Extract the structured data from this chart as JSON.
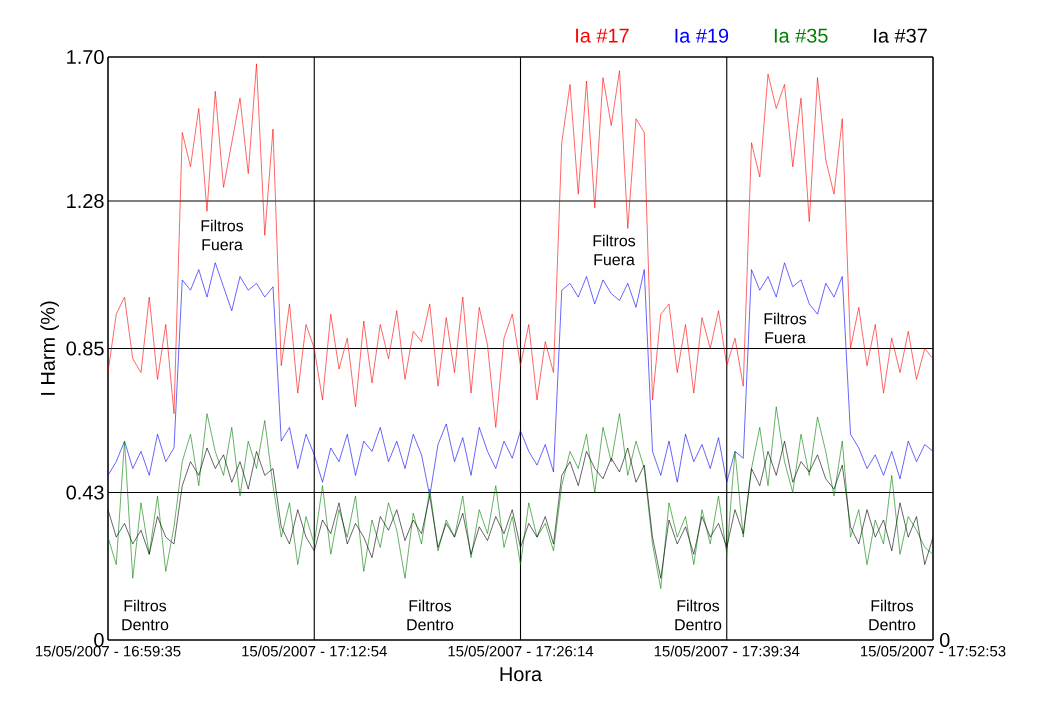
{
  "chart_data": {
    "type": "line",
    "xlabel": "Hora",
    "ylabel": "I Harm (%)",
    "legend": "top",
    "grid": true,
    "categories": [
      "15/05/2007 - 16:59:35",
      null,
      null,
      null,
      null,
      null,
      null,
      null,
      null,
      null,
      null,
      null,
      null,
      null,
      null,
      null,
      null,
      null,
      null,
      null,
      null,
      null,
      null,
      null,
      null,
      "15/05/2007 - 17:12:54",
      null,
      null,
      null,
      null,
      null,
      null,
      null,
      null,
      null,
      null,
      null,
      null,
      null,
      null,
      null,
      null,
      null,
      null,
      null,
      null,
      null,
      null,
      null,
      null,
      "15/05/2007 - 17:26:14",
      null,
      null,
      null,
      null,
      null,
      null,
      null,
      null,
      null,
      null,
      null,
      null,
      null,
      null,
      null,
      null,
      null,
      null,
      null,
      null,
      null,
      null,
      null,
      null,
      "15/05/2007 - 17:39:34",
      null,
      null,
      null,
      null,
      null,
      null,
      null,
      null,
      null,
      null,
      null,
      null,
      null,
      null,
      null,
      null,
      null,
      null,
      null,
      null,
      null,
      null,
      null,
      null,
      "15/05/2007 - 17:52:53"
    ],
    "ylim": [
      0,
      1.7
    ],
    "yticks": [
      0,
      0.43,
      0.85,
      1.28,
      {
        "value": 1.7,
        "label": "1.70"
      }
    ],
    "series": [
      {
        "name": "Ia #17",
        "color": "#ff0000",
        "values": [
          0.78,
          0.95,
          1.0,
          0.82,
          0.78,
          1.0,
          0.76,
          0.92,
          0.66,
          1.48,
          1.38,
          1.55,
          1.25,
          1.6,
          1.32,
          1.45,
          1.58,
          1.36,
          1.68,
          1.18,
          1.49,
          0.8,
          0.98,
          0.72,
          0.92,
          0.85,
          0.7,
          0.95,
          0.79,
          0.88,
          0.68,
          0.93,
          0.75,
          0.92,
          0.82,
          0.96,
          0.76,
          0.9,
          0.87,
          0.98,
          0.74,
          0.94,
          0.78,
          1.0,
          0.72,
          0.97,
          0.86,
          0.62,
          0.88,
          0.95,
          0.8,
          0.92,
          0.7,
          0.87,
          0.78,
          1.45,
          1.62,
          1.3,
          1.63,
          1.26,
          1.64,
          1.5,
          1.66,
          1.2,
          1.52,
          1.48,
          0.7,
          0.95,
          0.98,
          0.78,
          0.92,
          0.72,
          0.94,
          0.85,
          0.96,
          0.8,
          0.88,
          0.74,
          1.45,
          1.35,
          1.65,
          1.55,
          1.62,
          1.38,
          1.58,
          1.22,
          1.64,
          1.4,
          1.3,
          1.52,
          0.85,
          0.97,
          0.8,
          0.92,
          0.72,
          0.88,
          0.78,
          0.9,
          0.76,
          0.85,
          0.82
        ]
      },
      {
        "name": "Ia #19",
        "color": "#0000ff",
        "values": [
          0.48,
          0.52,
          0.58,
          0.5,
          0.55,
          0.48,
          0.6,
          0.52,
          0.56,
          1.05,
          1.02,
          1.08,
          1.0,
          1.1,
          1.03,
          0.96,
          1.06,
          1.02,
          1.04,
          1.0,
          1.03,
          0.58,
          0.62,
          0.5,
          0.6,
          0.54,
          0.46,
          0.56,
          0.52,
          0.6,
          0.48,
          0.58,
          0.55,
          0.62,
          0.52,
          0.58,
          0.5,
          0.6,
          0.54,
          0.42,
          0.57,
          0.63,
          0.52,
          0.59,
          0.48,
          0.62,
          0.55,
          0.5,
          0.58,
          0.53,
          0.61,
          0.55,
          0.51,
          0.57,
          0.49,
          1.02,
          1.04,
          1.0,
          1.06,
          0.98,
          1.05,
          1.01,
          0.99,
          1.04,
          0.97,
          1.08,
          0.55,
          0.48,
          0.58,
          0.46,
          0.6,
          0.52,
          0.57,
          0.5,
          0.59,
          0.46,
          0.55,
          0.53,
          1.08,
          1.02,
          1.06,
          1.0,
          1.1,
          1.03,
          1.05,
          0.98,
          0.95,
          1.04,
          1.0,
          1.06,
          0.6,
          0.56,
          0.5,
          0.54,
          0.48,
          0.55,
          0.47,
          0.58,
          0.52,
          0.57,
          0.55
        ]
      },
      {
        "name": "Ia #35",
        "color": "#008000",
        "values": [
          0.3,
          0.22,
          0.58,
          0.18,
          0.4,
          0.25,
          0.42,
          0.2,
          0.33,
          0.52,
          0.6,
          0.45,
          0.66,
          0.55,
          0.48,
          0.62,
          0.42,
          0.58,
          0.5,
          0.64,
          0.45,
          0.3,
          0.4,
          0.22,
          0.36,
          0.28,
          0.45,
          0.25,
          0.38,
          0.3,
          0.42,
          0.2,
          0.35,
          0.27,
          0.4,
          0.32,
          0.18,
          0.37,
          0.28,
          0.44,
          0.26,
          0.35,
          0.3,
          0.42,
          0.24,
          0.38,
          0.31,
          0.45,
          0.27,
          0.36,
          0.22,
          0.4,
          0.3,
          0.34,
          0.26,
          0.45,
          0.55,
          0.5,
          0.6,
          0.43,
          0.62,
          0.52,
          0.66,
          0.48,
          0.58,
          0.5,
          0.28,
          0.15,
          0.4,
          0.3,
          0.36,
          0.22,
          0.38,
          0.28,
          0.42,
          0.25,
          0.55,
          0.3,
          0.5,
          0.62,
          0.45,
          0.68,
          0.52,
          0.43,
          0.6,
          0.48,
          0.65,
          0.55,
          0.42,
          0.58,
          0.3,
          0.38,
          0.22,
          0.35,
          0.28,
          0.48,
          0.25,
          0.36,
          0.32,
          0.27,
          0.25
        ]
      },
      {
        "name": "Ia #37",
        "color": "#000000",
        "values": [
          0.38,
          0.3,
          0.34,
          0.28,
          0.32,
          0.25,
          0.36,
          0.3,
          0.28,
          0.45,
          0.52,
          0.48,
          0.56,
          0.5,
          0.54,
          0.46,
          0.52,
          0.44,
          0.55,
          0.48,
          0.5,
          0.33,
          0.28,
          0.38,
          0.3,
          0.26,
          0.35,
          0.31,
          0.4,
          0.28,
          0.34,
          0.3,
          0.24,
          0.36,
          0.32,
          0.38,
          0.29,
          0.35,
          0.31,
          0.42,
          0.27,
          0.34,
          0.3,
          0.37,
          0.25,
          0.33,
          0.29,
          0.36,
          0.31,
          0.38,
          0.27,
          0.34,
          0.3,
          0.36,
          0.28,
          0.48,
          0.52,
          0.45,
          0.55,
          0.5,
          0.47,
          0.53,
          0.49,
          0.56,
          0.46,
          0.51,
          0.3,
          0.18,
          0.35,
          0.28,
          0.33,
          0.25,
          0.36,
          0.3,
          0.34,
          0.27,
          0.38,
          0.31,
          0.5,
          0.45,
          0.55,
          0.48,
          0.58,
          0.46,
          0.52,
          0.49,
          0.54,
          0.47,
          0.44,
          0.51,
          0.33,
          0.28,
          0.38,
          0.3,
          0.35,
          0.26,
          0.4,
          0.3,
          0.36,
          0.22,
          0.3
        ]
      }
    ],
    "annotations": [
      "Filtros Fuera",
      "Filtros Fuera",
      "Filtros Fuera",
      "Filtros Dentro",
      "Filtros Dentro",
      "Filtros Dentro",
      "Filtros Dentro",
      "0"
    ]
  }
}
